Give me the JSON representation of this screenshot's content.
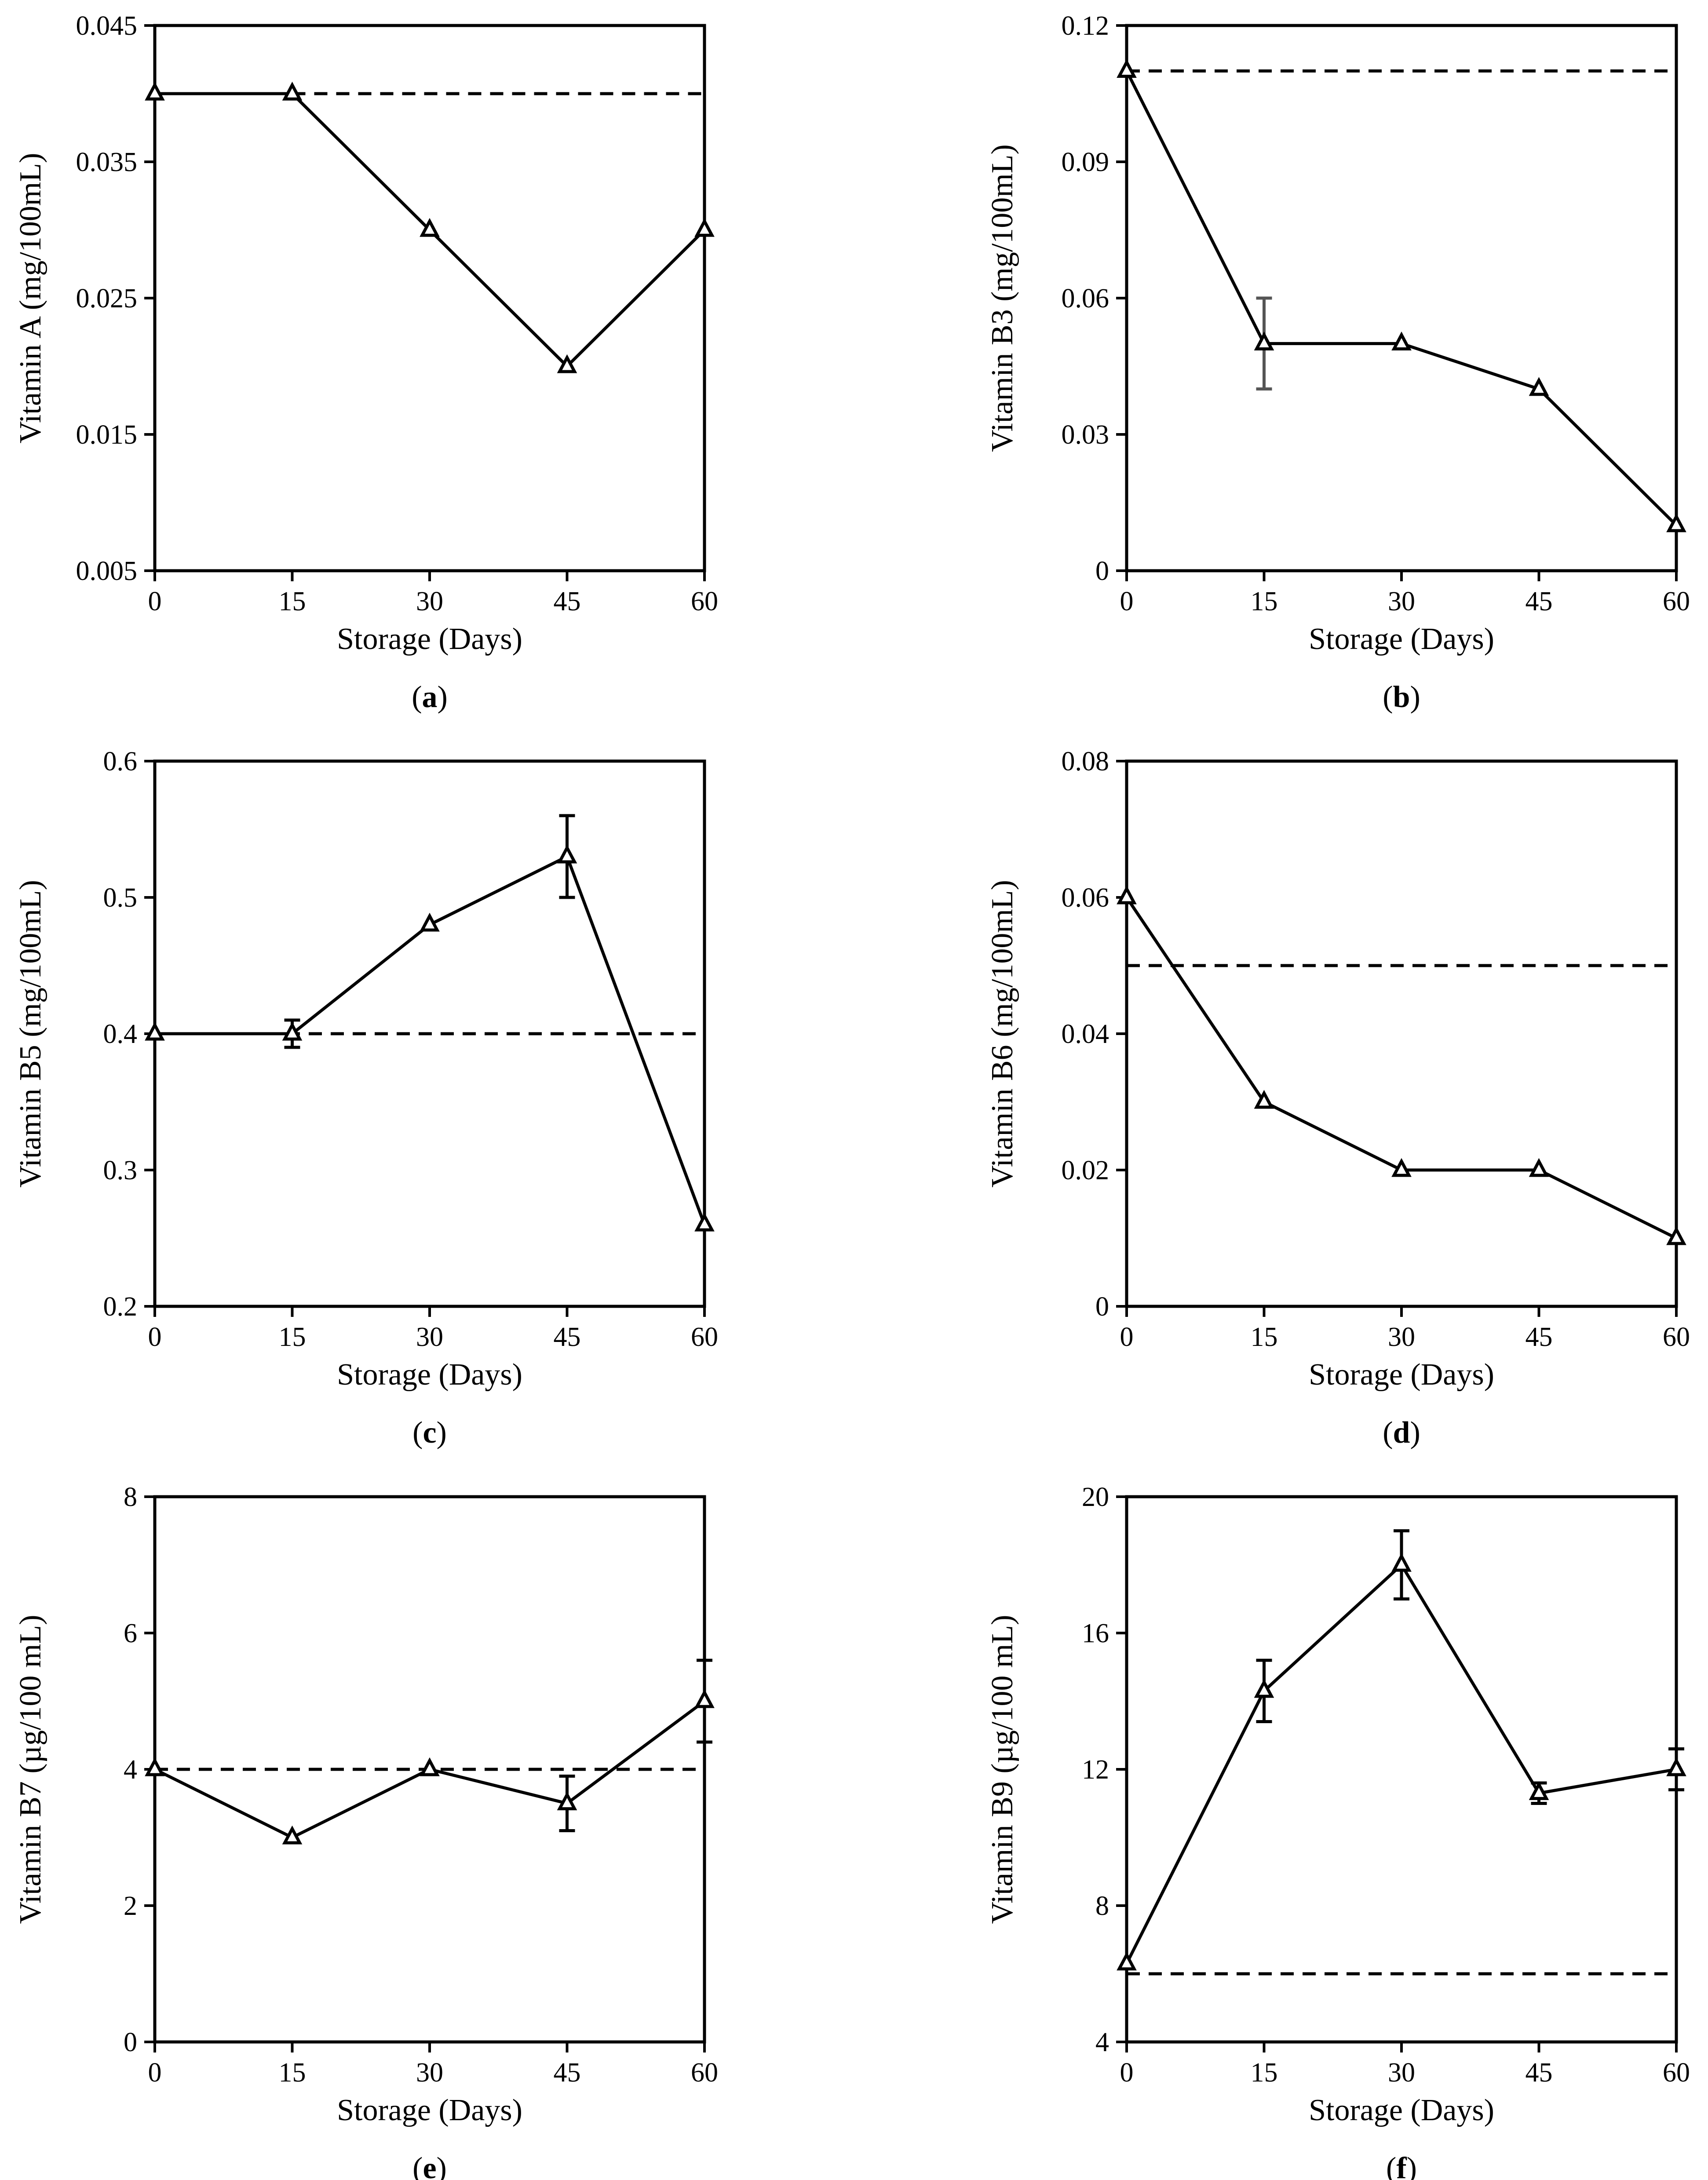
{
  "chart_data": [
    {
      "id": "a",
      "type": "line",
      "panel_label": "a",
      "xlabel": "Storage (Days)",
      "ylabel": "Vitamin A (mg/100mL)",
      "xlabel_color": "#000000",
      "x": [
        0,
        15,
        30,
        45,
        60
      ],
      "xlim": [
        0,
        60
      ],
      "xticks": [
        "0",
        "15",
        "30",
        "45",
        "60"
      ],
      "ylim": [
        0.005,
        0.045
      ],
      "yticks": [
        0.005,
        0.015,
        0.025,
        0.035,
        0.045
      ],
      "ytick_labels": [
        "0.005",
        "0.015",
        "0.025",
        "0.035",
        "0.045"
      ],
      "series": [
        {
          "name": "Vitamin A",
          "values": [
            0.04,
            0.04,
            0.03,
            0.02,
            0.03
          ],
          "errors": [
            0,
            0,
            0,
            0,
            0
          ]
        }
      ],
      "reference_line": {
        "value": 0.04,
        "from_x": 15,
        "to_x": 60,
        "style": "dashed"
      }
    },
    {
      "id": "b",
      "type": "line",
      "panel_label": "b",
      "xlabel": "Storage (Days)",
      "ylabel": "Vitamin B3 (mg/100mL)",
      "xlabel_color": "#000000",
      "x": [
        0,
        15,
        30,
        45,
        60
      ],
      "xlim": [
        0,
        60
      ],
      "xticks": [
        "0",
        "15",
        "30",
        "45",
        "60"
      ],
      "ylim": [
        0,
        0.12
      ],
      "yticks": [
        0,
        0.03,
        0.06,
        0.09,
        0.12
      ],
      "ytick_labels": [
        "0",
        "0.03",
        "0.06",
        "0.09",
        "0.12"
      ],
      "series": [
        {
          "name": "Vitamin B3",
          "values": [
            0.11,
            0.05,
            0.05,
            0.04,
            0.01
          ],
          "errors": [
            0,
            0.01,
            0,
            0,
            0
          ]
        }
      ],
      "error_color": "#555555",
      "reference_line": {
        "value": 0.11,
        "from_x": 0,
        "to_x": 60,
        "style": "dashed"
      }
    },
    {
      "id": "c",
      "type": "line",
      "panel_label": "c",
      "xlabel": "Storage (Days)",
      "ylabel": "Vitamin B5  (mg/100mL)",
      "xlabel_color": "#888888",
      "x": [
        0,
        15,
        30,
        45,
        60
      ],
      "xlim": [
        0,
        60
      ],
      "xticks": [
        "0",
        "15",
        "30",
        "45",
        "60"
      ],
      "ylim": [
        0.2,
        0.6
      ],
      "yticks": [
        0.2,
        0.3,
        0.4,
        0.5,
        0.6
      ],
      "ytick_labels": [
        "0.2",
        "0.3",
        "0.4",
        "0.5",
        "0.6"
      ],
      "series": [
        {
          "name": "Vitamin B5",
          "values": [
            0.4,
            0.4,
            0.48,
            0.53,
            0.26
          ],
          "errors": [
            0,
            0.01,
            0,
            0.03,
            0
          ]
        }
      ],
      "reference_line": {
        "value": 0.4,
        "from_x": 0,
        "to_x": 60,
        "style": "dashed"
      }
    },
    {
      "id": "d",
      "type": "line",
      "panel_label": "d",
      "xlabel": "Storage (Days)",
      "ylabel": "Vitamin B6  (mg/100mL)",
      "xlabel_color": "#888888",
      "x": [
        0,
        15,
        30,
        45,
        60
      ],
      "xlim": [
        0,
        60
      ],
      "xticks": [
        "0",
        "15",
        "30",
        "45",
        "60"
      ],
      "ylim": [
        0,
        0.08
      ],
      "yticks": [
        0,
        0.02,
        0.04,
        0.06,
        0.08
      ],
      "ytick_labels": [
        "0",
        "0.02",
        "0.04",
        "0.06",
        "0.08"
      ],
      "series": [
        {
          "name": "Vitamin B6",
          "values": [
            0.06,
            0.03,
            0.02,
            0.02,
            0.01
          ],
          "errors": [
            0,
            0,
            0,
            0,
            0
          ]
        }
      ],
      "reference_line": {
        "value": 0.05,
        "from_x": 0,
        "to_x": 60,
        "style": "dashed"
      }
    },
    {
      "id": "e",
      "type": "line",
      "panel_label": "e",
      "xlabel": "Storage (Days)",
      "ylabel": "Vitamin B7 (µg/100 mL)",
      "xlabel_color": "#000000",
      "x": [
        0,
        15,
        30,
        45,
        60
      ],
      "xlim": [
        0,
        60
      ],
      "xticks": [
        "0",
        "15",
        "30",
        "45",
        "60"
      ],
      "ylim": [
        0,
        8
      ],
      "yticks": [
        0,
        2,
        4,
        6,
        8
      ],
      "ytick_labels": [
        "0",
        "2",
        "4",
        "6",
        "8"
      ],
      "series": [
        {
          "name": "Vitamin B7",
          "values": [
            4,
            3,
            4,
            3.5,
            5
          ],
          "errors": [
            0,
            0,
            0,
            0.4,
            0.6
          ]
        }
      ],
      "reference_line": {
        "value": 4,
        "from_x": 0,
        "to_x": 60,
        "style": "dashed"
      }
    },
    {
      "id": "f",
      "type": "line",
      "panel_label": "f",
      "xlabel": "Storage (Days)",
      "ylabel": "Vitamin B9 (µg/100 mL)",
      "xlabel_color": "#000000",
      "x": [
        0,
        15,
        30,
        45,
        60
      ],
      "xlim": [
        0,
        60
      ],
      "xticks": [
        "0",
        "15",
        "30",
        "45",
        "60"
      ],
      "ylim": [
        4,
        20
      ],
      "yticks": [
        4,
        8,
        12,
        16,
        20
      ],
      "ytick_labels": [
        "4",
        "8",
        "12",
        "16",
        "20"
      ],
      "series": [
        {
          "name": "Vitamin B9",
          "values": [
            6.3,
            14.3,
            18,
            11.3,
            12
          ],
          "errors": [
            0,
            0.9,
            1,
            0.3,
            0.6
          ]
        }
      ],
      "reference_line": {
        "value": 6,
        "from_x": 0,
        "to_x": 60,
        "style": "dashed"
      }
    }
  ]
}
